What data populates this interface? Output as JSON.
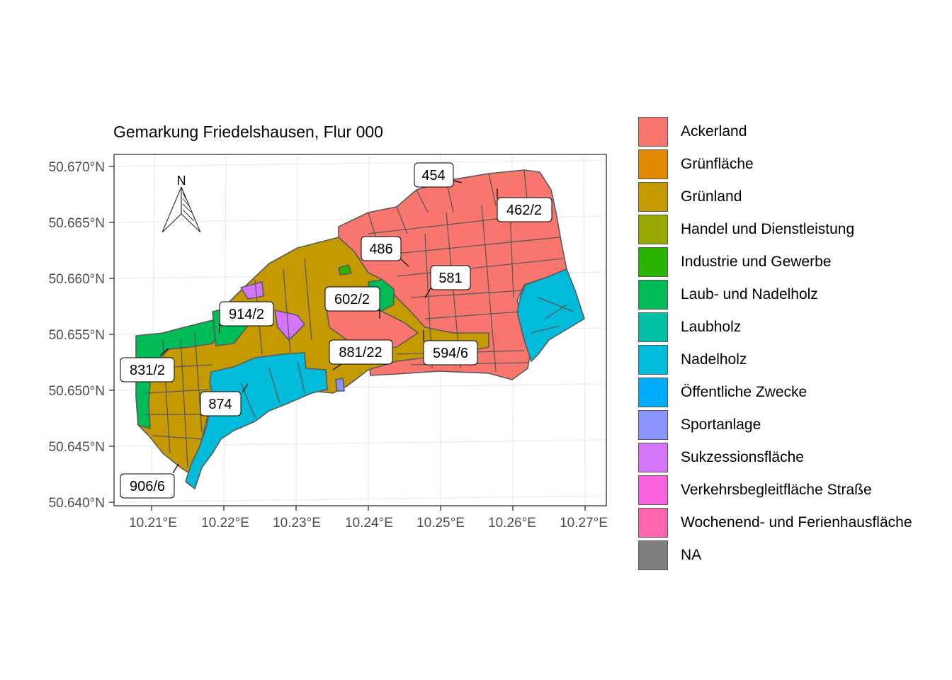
{
  "title": "Gemarkung Friedelshausen, Flur 000",
  "y_ticks": [
    "50.670°N",
    "50.665°N",
    "50.660°N",
    "50.655°N",
    "50.650°N",
    "50.645°N",
    "50.640°N"
  ],
  "x_ticks": [
    "10.21°E",
    "10.22°E",
    "10.23°E",
    "10.24°E",
    "10.25°E",
    "10.26°E",
    "10.27°E"
  ],
  "north_arrow": {
    "label": "N"
  },
  "parcel_labels": [
    "454",
    "462/2",
    "486",
    "581",
    "602/2",
    "914/2",
    "594/6",
    "881/22",
    "831/2",
    "874",
    "906/6"
  ],
  "legend": {
    "items": [
      {
        "label": "Ackerland",
        "color": "#F8766D"
      },
      {
        "label": "Grünfläche",
        "color": "#E38900"
      },
      {
        "label": "Grünland",
        "color": "#C49A00"
      },
      {
        "label": "Handel und Dienstleistung",
        "color": "#99A800"
      },
      {
        "label": "Industrie und Gewerbe",
        "color": "#2AB400"
      },
      {
        "label": "Laub- und Nadelholz",
        "color": "#00BC56"
      },
      {
        "label": "Laubholz",
        "color": "#00BFA4"
      },
      {
        "label": "Nadelholz",
        "color": "#00BBDA"
      },
      {
        "label": "Öffentliche Zwecke",
        "color": "#00ACFC"
      },
      {
        "label": "Sportanlage",
        "color": "#8B93FF"
      },
      {
        "label": "Sukzessionsfläche",
        "color": "#D575FE"
      },
      {
        "label": "Verkehrsbegleitfläche Straße",
        "color": "#F962DD"
      },
      {
        "label": "Wochenend- und Ferienhausfläche",
        "color": "#FF65AC"
      },
      {
        "label": "NA",
        "color": "#7F7F7F"
      }
    ]
  }
}
